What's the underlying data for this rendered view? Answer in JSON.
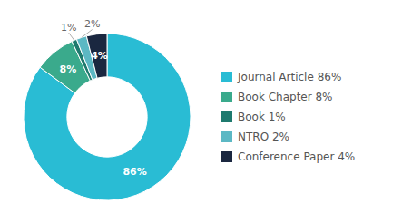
{
  "chart_data": {
    "type": "donut",
    "categories": [
      "Journal Article 86%",
      "Book Chapter 8%",
      "Book 1%",
      "NTRO 2%",
      "Conference Paper 4%"
    ],
    "values": [
      86,
      8,
      1,
      2,
      4
    ],
    "value_labels": [
      "86%",
      "8%",
      "1%",
      "2%",
      "4%"
    ],
    "colors": [
      "#29bcd4",
      "#3aaa8c",
      "#1e7a6e",
      "#5cb8c4",
      "#1a2740"
    ],
    "data_labels": true,
    "legend": "right"
  }
}
